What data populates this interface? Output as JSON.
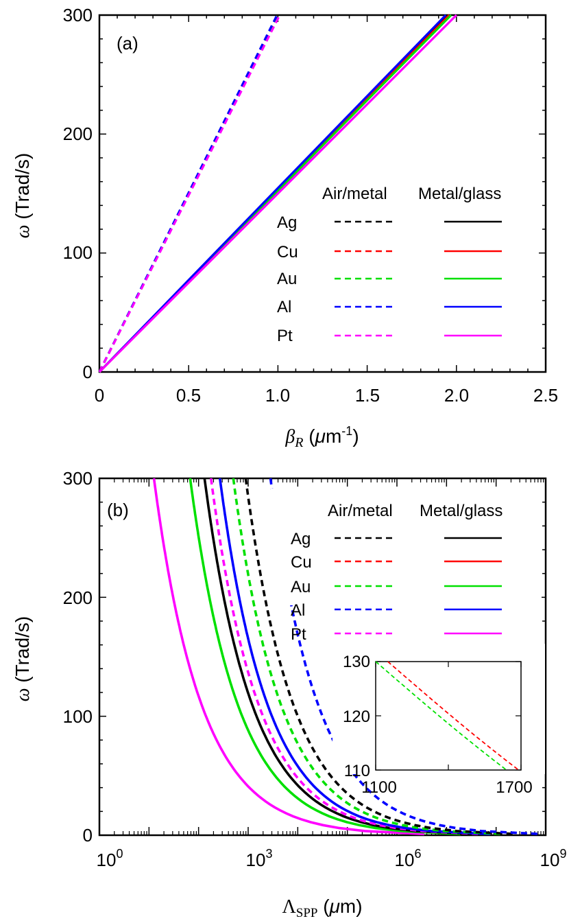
{
  "chart_data": [
    {
      "type": "line",
      "panel_label": "(a)",
      "xlabel": "βR (μm-1)",
      "xlabel_parts": {
        "sym": "β",
        "sub": "R",
        "unit_pre": " (",
        "mu": "μ",
        "unit": "m",
        "sup": "-1",
        "unit_post": ")"
      },
      "ylabel": "ω (Trad/s)",
      "ylabel_parts": {
        "sym": "ω",
        "unit": " (Trad/s)"
      },
      "xlim": [
        0,
        2.5
      ],
      "ylim": [
        0,
        300
      ],
      "xticks": [
        "0",
        "0.5",
        "1.0",
        "1.5",
        "2.0",
        "2.5"
      ],
      "yticks": [
        "0",
        "100",
        "200",
        "300"
      ],
      "legend_headers": [
        "Air/metal",
        "Metal/glass"
      ],
      "metals": [
        "Ag",
        "Cu",
        "Au",
        "Al",
        "Pt"
      ],
      "colors": {
        "Ag": "#000000",
        "Cu": "#ff0000",
        "Au": "#00e000",
        "Al": "#0000ff",
        "Pt": "#ff00ff"
      },
      "series": [
        {
          "name": "Ag air/metal",
          "style": "dashed",
          "x": [
            0,
            1.0
          ],
          "y": [
            0,
            300
          ]
        },
        {
          "name": "Cu air/metal",
          "style": "dashed",
          "x": [
            0,
            1.0
          ],
          "y": [
            0,
            300
          ]
        },
        {
          "name": "Au air/metal",
          "style": "dashed",
          "x": [
            0,
            1.0
          ],
          "y": [
            0,
            300
          ]
        },
        {
          "name": "Al air/metal",
          "style": "dashed",
          "x": [
            0,
            0.995
          ],
          "y": [
            0,
            300
          ]
        },
        {
          "name": "Pt air/metal",
          "style": "dashed",
          "x": [
            0,
            1.01
          ],
          "y": [
            0,
            300
          ]
        },
        {
          "name": "Ag metal/glass",
          "style": "solid",
          "x": [
            0,
            1.95
          ],
          "y": [
            0,
            300
          ]
        },
        {
          "name": "Cu metal/glass",
          "style": "solid",
          "x": [
            0,
            1.96
          ],
          "y": [
            0,
            300
          ]
        },
        {
          "name": "Au metal/glass",
          "style": "solid",
          "x": [
            0,
            1.97
          ],
          "y": [
            0,
            300
          ]
        },
        {
          "name": "Al metal/glass",
          "style": "solid",
          "x": [
            0,
            1.94
          ],
          "y": [
            0,
            300
          ]
        },
        {
          "name": "Pt metal/glass",
          "style": "solid",
          "x": [
            0,
            2.0
          ],
          "y": [
            0,
            300
          ]
        }
      ]
    },
    {
      "type": "line",
      "panel_label": "(b)",
      "xscale": "log",
      "xlabel": "ΛSPP (μm)",
      "xlabel_parts": {
        "sym": "Λ",
        "sub": "SPP",
        "unit_pre": " (",
        "mu": "μ",
        "unit": "m)"
      },
      "ylabel": "ω (Trad/s)",
      "ylabel_parts": {
        "sym": "ω",
        "unit": " (Trad/s)"
      },
      "xlim_log10": [
        0,
        9
      ],
      "ylim": [
        0,
        300
      ],
      "xticks": [
        {
          "base": "10",
          "exp": "0"
        },
        {
          "base": "10",
          "exp": "3"
        },
        {
          "base": "10",
          "exp": "6"
        },
        {
          "base": "10",
          "exp": "9"
        }
      ],
      "yticks": [
        "0",
        "100",
        "200",
        "300"
      ],
      "legend_headers": [
        "Air/metal",
        "Metal/glass"
      ],
      "metals": [
        "Ag",
        "Cu",
        "Au",
        "Al",
        "Pt"
      ],
      "series": [
        {
          "name": "Pt metal/glass",
          "style": "solid",
          "color": "Pt",
          "log10_x_at_300": 1.1
        },
        {
          "name": "Au metal/glass",
          "style": "solid",
          "color": "Au",
          "log10_x_at_300": 1.83
        },
        {
          "name": "Ag metal/glass",
          "style": "solid",
          "color": "Ag",
          "log10_x_at_300": 2.12
        },
        {
          "name": "Pt air/metal",
          "style": "dashed",
          "color": "Pt",
          "log10_x_at_300": 2.25
        },
        {
          "name": "Al metal/glass",
          "style": "solid",
          "color": "Al",
          "log10_x_at_300": 2.43
        },
        {
          "name": "Au air/metal",
          "style": "dashed",
          "color": "Au",
          "log10_x_at_300": 2.7
        },
        {
          "name": "Ag air/metal",
          "style": "dashed",
          "color": "Ag",
          "log10_x_at_300": 2.95
        },
        {
          "name": "Al air/metal",
          "style": "dashed",
          "color": "Al",
          "log10_x_at_300": 3.45
        }
      ],
      "inset": {
        "xlim": [
          1100,
          1700
        ],
        "ylim": [
          110,
          130
        ],
        "xticks": [
          "1100",
          "1700"
        ],
        "yticks": [
          "110",
          "120",
          "130"
        ],
        "series": [
          {
            "name": "Cu air/metal",
            "style": "dashed",
            "color": "Cu",
            "x": [
              1150,
              1690
            ],
            "y": [
              130,
              110
            ]
          },
          {
            "name": "Au air/metal",
            "style": "dashed",
            "color": "Au",
            "x": [
              1100,
              1640
            ],
            "y": [
              130,
              110
            ]
          }
        ]
      }
    }
  ]
}
